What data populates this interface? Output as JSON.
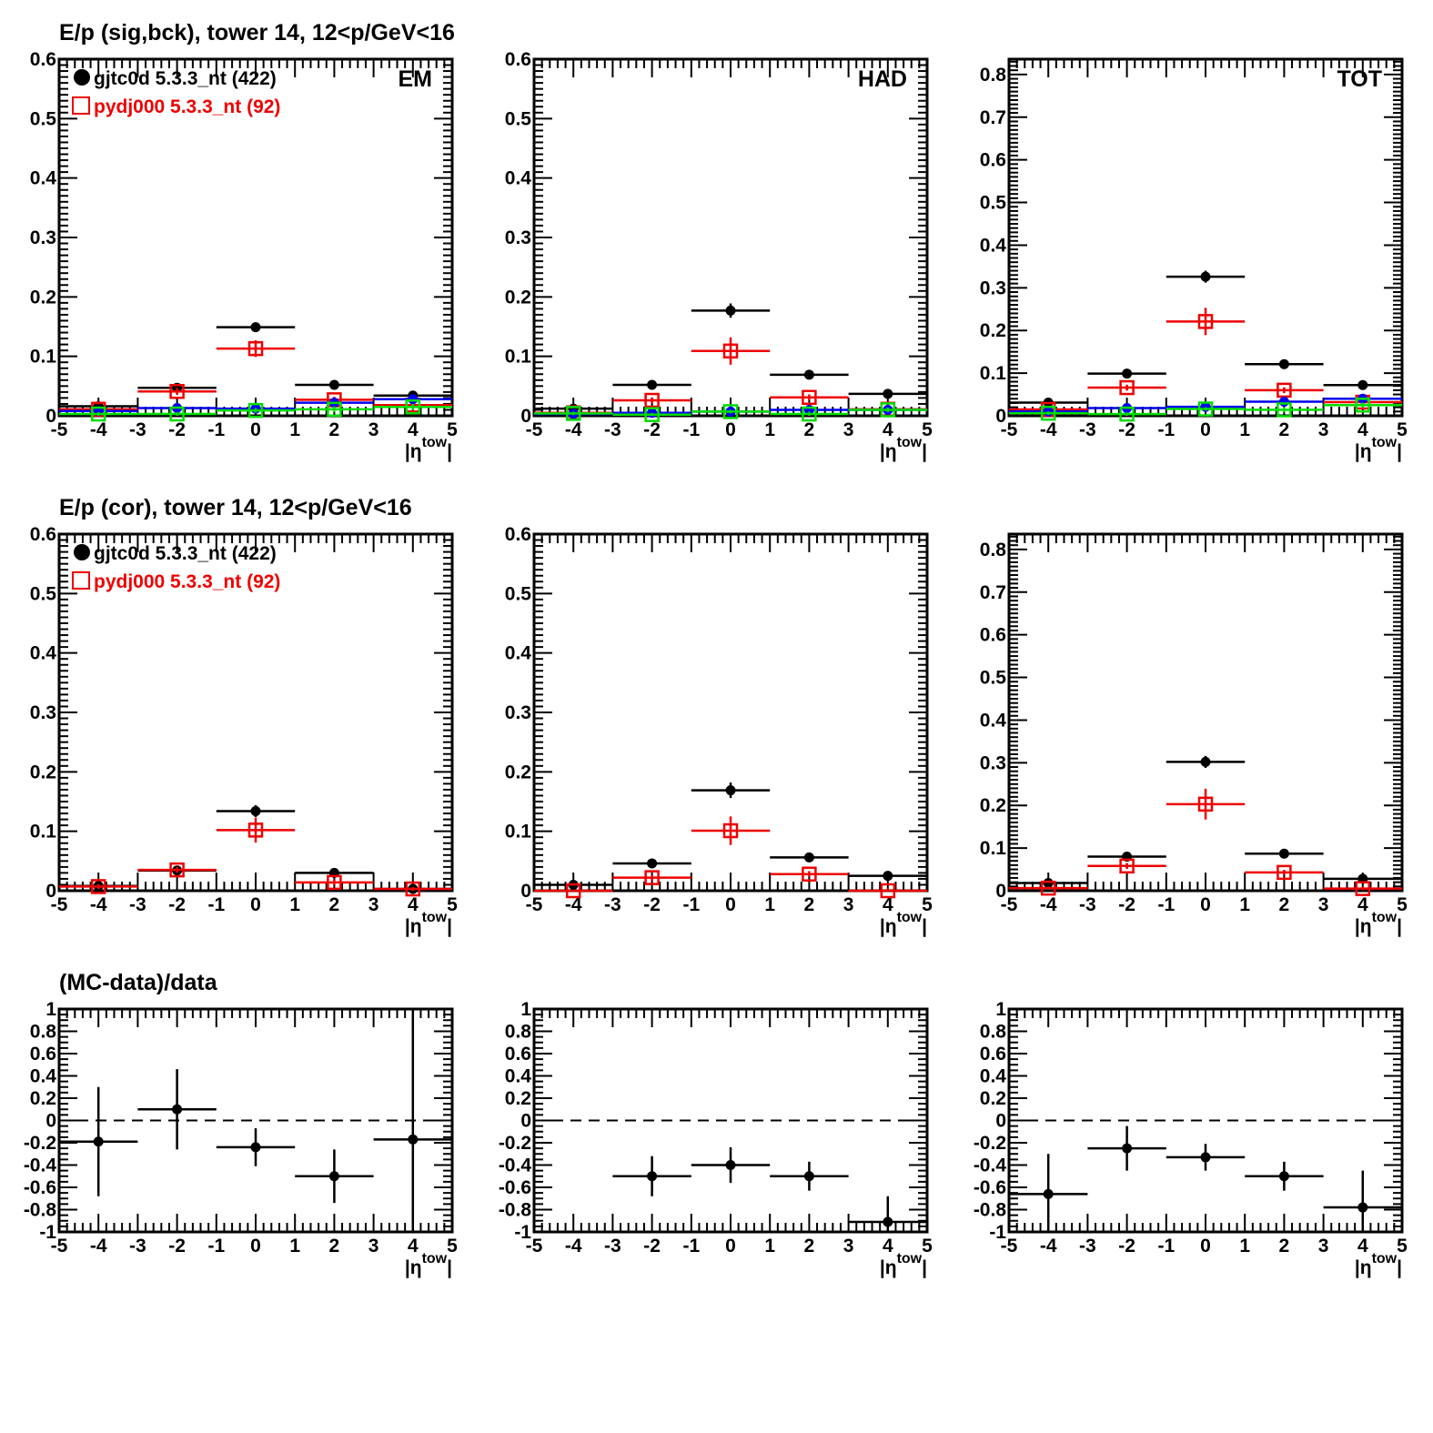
{
  "chart_data": [
    {
      "type": "scatter",
      "row_title": "E/p (sig,bck), tower 14, 12<p/GeV<16",
      "panel_label": "EM",
      "xlabel": "|η^tow|",
      "xlim": [
        -5,
        5
      ],
      "ylim": [
        0,
        0.6
      ],
      "xticks": [
        "-5",
        "-4",
        "-3",
        "-2",
        "-1",
        "0",
        "1",
        "2",
        "3",
        "4",
        "5"
      ],
      "yticks": [
        "0",
        "0.1",
        "0.2",
        "0.3",
        "0.4",
        "0.5",
        "0.6"
      ],
      "legend": [
        {
          "label": "gjtc0d 5.3.3_nt (422)",
          "marker": "filled-circle",
          "color": "#000000"
        },
        {
          "label": "pydj000 5.3.3_nt (92)",
          "marker": "open-square",
          "color": "#ee0000"
        }
      ],
      "x": [
        -4,
        -2,
        0,
        2,
        4
      ],
      "series": [
        {
          "name": "gjtc0d sig",
          "color": "#000000",
          "marker": "filled-circle",
          "values": [
            0.016,
            0.047,
            0.149,
            0.052,
            0.034
          ],
          "errors": [
            0.003,
            0.004,
            0.008,
            0.004,
            0.003
          ]
        },
        {
          "name": "pydj000 sig",
          "color": "#ee0000",
          "marker": "open-square",
          "values": [
            0.011,
            0.041,
            0.113,
            0.027,
            0.018
          ],
          "errors": [
            0.004,
            0.006,
            0.014,
            0.005,
            0.005
          ]
        },
        {
          "name": "gjtc0d bck",
          "color": "#0000ee",
          "marker": "filled-circle",
          "values": [
            0.008,
            0.013,
            0.012,
            0.022,
            0.028
          ],
          "errors": [
            0.002,
            0.003,
            0.003,
            0.003,
            0.003
          ]
        },
        {
          "name": "pydj000 bck",
          "color": "#00dd00",
          "marker": "open-square",
          "values": [
            0.003,
            0.003,
            0.009,
            0.011,
            0.015
          ],
          "errors": [
            0.003,
            0.003,
            0.004,
            0.005,
            0.005
          ]
        }
      ]
    },
    {
      "type": "scatter",
      "panel_label": "HAD",
      "xlabel": "|η^tow|",
      "xlim": [
        -5,
        5
      ],
      "ylim": [
        0,
        0.6
      ],
      "xticks": [
        "-5",
        "-4",
        "-3",
        "-2",
        "-1",
        "0",
        "1",
        "2",
        "3",
        "4",
        "5"
      ],
      "yticks": [
        "0",
        "0.1",
        "0.2",
        "0.3",
        "0.4",
        "0.5",
        "0.6"
      ],
      "x": [
        -4,
        -2,
        0,
        2,
        4
      ],
      "series": [
        {
          "name": "gjtc0d sig",
          "color": "#000000",
          "marker": "filled-circle",
          "values": [
            0.012,
            0.052,
            0.177,
            0.069,
            0.037
          ],
          "errors": [
            0.002,
            0.004,
            0.012,
            0.004,
            0.003
          ]
        },
        {
          "name": "pydj000 sig",
          "color": "#ee0000",
          "marker": "open-square",
          "values": [
            0.005,
            0.026,
            0.109,
            0.031,
            0.011
          ],
          "errors": [
            0.003,
            0.005,
            0.023,
            0.005,
            0.004
          ]
        },
        {
          "name": "gjtc0d bck",
          "color": "#0000ee",
          "marker": "filled-circle",
          "values": [
            0.003,
            0.005,
            0.007,
            0.01,
            0.01
          ],
          "errors": [
            0.002,
            0.002,
            0.003,
            0.003,
            0.003
          ]
        },
        {
          "name": "pydj000 bck",
          "color": "#00dd00",
          "marker": "open-square",
          "values": [
            0.004,
            0.002,
            0.007,
            0.003,
            0.01
          ],
          "errors": [
            0.003,
            0.003,
            0.003,
            0.004,
            0.004
          ]
        }
      ]
    },
    {
      "type": "scatter",
      "panel_label": "TOT",
      "xlabel": "|η^tow|",
      "xlim": [
        -5,
        5
      ],
      "ylim": [
        0,
        0.836
      ],
      "xticks": [
        "-5",
        "-4",
        "-3",
        "-2",
        "-1",
        "0",
        "1",
        "2",
        "3",
        "4",
        "5"
      ],
      "yticks": [
        "0",
        "0.1",
        "0.2",
        "0.3",
        "0.4",
        "0.5",
        "0.6",
        "0.7",
        "0.8"
      ],
      "x": [
        -4,
        -2,
        0,
        2,
        4
      ],
      "series": [
        {
          "name": "gjtc0d sig",
          "color": "#000000",
          "marker": "filled-circle",
          "values": [
            0.031,
            0.099,
            0.326,
            0.121,
            0.072
          ],
          "errors": [
            0.004,
            0.005,
            0.014,
            0.005,
            0.004
          ]
        },
        {
          "name": "pydj000 sig",
          "color": "#ee0000",
          "marker": "open-square",
          "values": [
            0.015,
            0.066,
            0.221,
            0.06,
            0.032
          ],
          "errors": [
            0.005,
            0.007,
            0.032,
            0.007,
            0.005
          ]
        },
        {
          "name": "gjtc0d bck",
          "color": "#0000ee",
          "marker": "filled-circle",
          "values": [
            0.01,
            0.018,
            0.021,
            0.033,
            0.04
          ],
          "errors": [
            0.003,
            0.003,
            0.003,
            0.004,
            0.004
          ]
        },
        {
          "name": "pydj000 bck",
          "color": "#00dd00",
          "marker": "open-square",
          "values": [
            0.006,
            0.004,
            0.016,
            0.014,
            0.025
          ],
          "errors": [
            0.004,
            0.004,
            0.004,
            0.006,
            0.006
          ]
        }
      ]
    },
    {
      "type": "scatter",
      "row_title": "E/p (cor), tower 14, 12<p/GeV<16",
      "xlabel": "|η^tow|",
      "xlim": [
        -5,
        5
      ],
      "ylim": [
        0,
        0.6
      ],
      "xticks": [
        "-5",
        "-4",
        "-3",
        "-2",
        "-1",
        "0",
        "1",
        "2",
        "3",
        "4",
        "5"
      ],
      "yticks": [
        "0",
        "0.1",
        "0.2",
        "0.3",
        "0.4",
        "0.5",
        "0.6"
      ],
      "legend": [
        {
          "label": "gjtc0d 5.3.3_nt (422)",
          "marker": "filled-circle",
          "color": "#000000"
        },
        {
          "label": "pydj000 5.3.3_nt (92)",
          "marker": "open-square",
          "color": "#ee0000"
        }
      ],
      "x": [
        -4,
        -2,
        0,
        2,
        4
      ],
      "series": [
        {
          "name": "gjtc0d",
          "color": "#000000",
          "marker": "filled-circle",
          "values": [
            0.008,
            0.034,
            0.134,
            0.03,
            0.003
          ],
          "errors": [
            0.003,
            0.004,
            0.01,
            0.004,
            0.003
          ]
        },
        {
          "name": "pydj000",
          "color": "#ee0000",
          "marker": "open-square",
          "values": [
            0.007,
            0.035,
            0.102,
            0.014,
            0.003
          ],
          "errors": [
            0.004,
            0.005,
            0.021,
            0.005,
            0.003
          ]
        }
      ]
    },
    {
      "type": "scatter",
      "xlabel": "|η^tow|",
      "xlim": [
        -5,
        5
      ],
      "ylim": [
        0,
        0.6
      ],
      "xticks": [
        "-5",
        "-4",
        "-3",
        "-2",
        "-1",
        "0",
        "1",
        "2",
        "3",
        "4",
        "5"
      ],
      "yticks": [
        "0",
        "0.1",
        "0.2",
        "0.3",
        "0.4",
        "0.5",
        "0.6"
      ],
      "x": [
        -4,
        -2,
        0,
        2,
        4
      ],
      "series": [
        {
          "name": "gjtc0d",
          "color": "#000000",
          "marker": "filled-circle",
          "values": [
            0.01,
            0.046,
            0.169,
            0.056,
            0.025
          ],
          "errors": [
            0.002,
            0.003,
            0.013,
            0.004,
            0.003
          ]
        },
        {
          "name": "pydj000",
          "color": "#ee0000",
          "marker": "open-square",
          "values": [
            0.0,
            0.022,
            0.101,
            0.028,
            0.0
          ],
          "errors": [
            0.0,
            0.005,
            0.024,
            0.005,
            0.004
          ]
        }
      ]
    },
    {
      "type": "scatter",
      "xlabel": "|η^tow|",
      "xlim": [
        -5,
        5
      ],
      "ylim": [
        0,
        0.836
      ],
      "xticks": [
        "-5",
        "-4",
        "-3",
        "-2",
        "-1",
        "0",
        "1",
        "2",
        "3",
        "4",
        "5"
      ],
      "yticks": [
        "0",
        "0.1",
        "0.2",
        "0.3",
        "0.4",
        "0.5",
        "0.6",
        "0.7",
        "0.8"
      ],
      "x": [
        -4,
        -2,
        0,
        2,
        4
      ],
      "series": [
        {
          "name": "gjtc0d",
          "color": "#000000",
          "marker": "filled-circle",
          "values": [
            0.018,
            0.08,
            0.302,
            0.087,
            0.028
          ],
          "errors": [
            0.003,
            0.004,
            0.014,
            0.004,
            0.003
          ]
        },
        {
          "name": "pydj000",
          "color": "#ee0000",
          "marker": "open-square",
          "values": [
            0.006,
            0.058,
            0.203,
            0.043,
            0.005
          ],
          "errors": [
            0.004,
            0.007,
            0.036,
            0.006,
            0.004
          ]
        }
      ]
    },
    {
      "type": "scatter",
      "row_title": "(MC-data)/data",
      "xlabel": "|η^tow|",
      "xlim": [
        -5,
        5
      ],
      "ylim": [
        -1,
        1
      ],
      "xticks": [
        "-5",
        "-4",
        "-3",
        "-2",
        "-1",
        "0",
        "1",
        "2",
        "3",
        "4",
        "5"
      ],
      "yticks": [
        "-1",
        "-0.8",
        "-0.6",
        "-0.4",
        "-0.2",
        "0",
        "0.2",
        "0.4",
        "0.6",
        "0.8",
        "1"
      ],
      "reference_line": 0,
      "x": [
        -4,
        -2,
        0,
        2,
        4
      ],
      "series": [
        {
          "name": "ratio",
          "color": "#000000",
          "marker": "filled-circle",
          "values": [
            -0.19,
            0.1,
            -0.24,
            -0.5,
            -0.17
          ],
          "errors": [
            0.49,
            0.36,
            0.17,
            0.24,
            1.2
          ]
        }
      ]
    },
    {
      "type": "scatter",
      "xlabel": "|η^tow|",
      "xlim": [
        -5,
        5
      ],
      "ylim": [
        -1,
        1
      ],
      "xticks": [
        "-5",
        "-4",
        "-3",
        "-2",
        "-1",
        "0",
        "1",
        "2",
        "3",
        "4",
        "5"
      ],
      "yticks": [
        "-1",
        "-0.8",
        "-0.6",
        "-0.4",
        "-0.2",
        "0",
        "0.2",
        "0.4",
        "0.6",
        "0.8",
        "1"
      ],
      "reference_line": 0,
      "x": [
        -2,
        0,
        2,
        4
      ],
      "series": [
        {
          "name": "ratio",
          "color": "#000000",
          "marker": "filled-circle",
          "values": [
            -0.5,
            -0.4,
            -0.5,
            -0.91
          ],
          "errors": [
            0.18,
            0.16,
            0.13,
            0.23
          ]
        }
      ]
    },
    {
      "type": "scatter",
      "xlabel": "|η^tow|",
      "xlim": [
        -5,
        5
      ],
      "ylim": [
        -1,
        1
      ],
      "xticks": [
        "-5",
        "-4",
        "-3",
        "-2",
        "-1",
        "0",
        "1",
        "2",
        "3",
        "4",
        "5"
      ],
      "yticks": [
        "-1",
        "-0.8",
        "-0.6",
        "-0.4",
        "-0.2",
        "0",
        "0.2",
        "0.4",
        "0.6",
        "0.8",
        "1"
      ],
      "reference_line": 0,
      "x": [
        -4,
        -2,
        0,
        2,
        4
      ],
      "series": [
        {
          "name": "ratio",
          "color": "#000000",
          "marker": "filled-circle",
          "values": [
            -0.66,
            -0.25,
            -0.33,
            -0.5,
            -0.78
          ],
          "errors": [
            0.36,
            0.2,
            0.12,
            0.13,
            0.33
          ]
        }
      ]
    }
  ]
}
